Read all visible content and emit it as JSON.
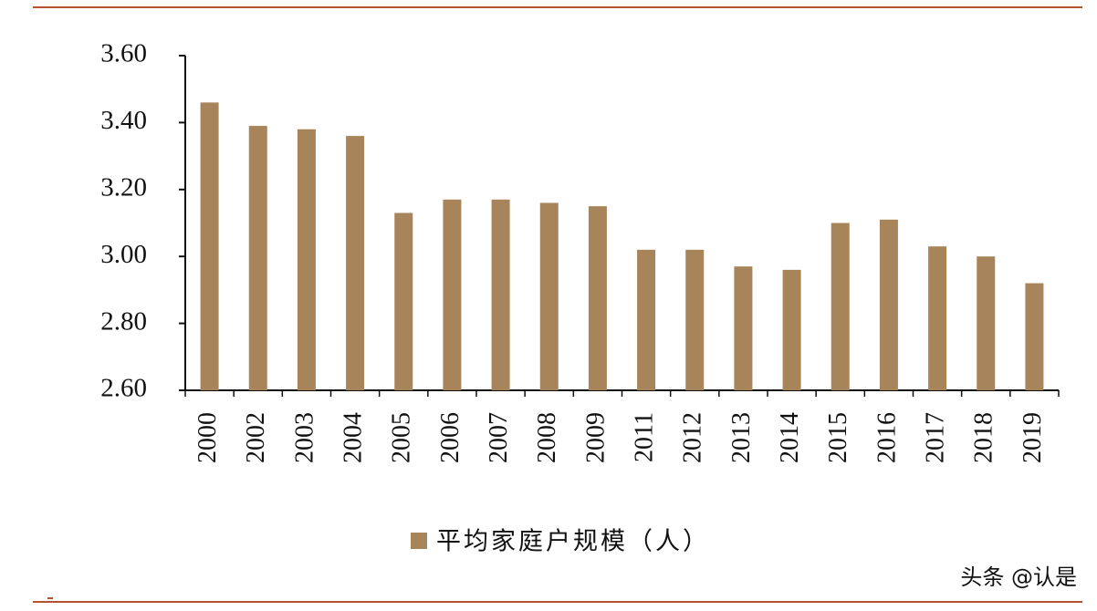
{
  "chart_data": {
    "type": "bar",
    "categories": [
      "2000",
      "2002",
      "2003",
      "2004",
      "2005",
      "2006",
      "2007",
      "2008",
      "2009",
      "2011",
      "2012",
      "2013",
      "2014",
      "2015",
      "2016",
      "2017",
      "2018",
      "2019"
    ],
    "series": [
      {
        "name": "平均家庭户规模（人）",
        "color": "#a8845a",
        "values": [
          3.46,
          3.39,
          3.38,
          3.36,
          3.13,
          3.17,
          3.17,
          3.16,
          3.15,
          3.02,
          3.02,
          2.97,
          2.96,
          3.1,
          3.11,
          3.03,
          3.0,
          2.92
        ]
      }
    ],
    "ylim": [
      2.6,
      3.6
    ],
    "yticks": [
      {
        "value": 2.6,
        "label": "2.60"
      },
      {
        "value": 2.8,
        "label": "2.80"
      },
      {
        "value": 3.0,
        "label": "3.00"
      },
      {
        "value": 3.2,
        "label": "3.20"
      },
      {
        "value": 3.4,
        "label": "3.40"
      },
      {
        "value": 3.6,
        "label": "3.60"
      }
    ],
    "grid": false,
    "legend": "bottom",
    "watermark": "头条 @认是"
  }
}
